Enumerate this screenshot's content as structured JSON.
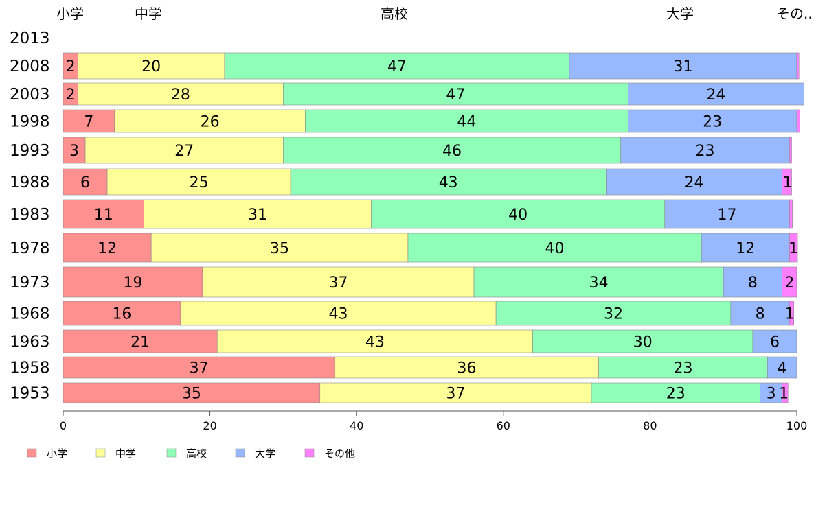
{
  "chart_data": {
    "type": "bar",
    "orientation": "horizontal",
    "stacked": true,
    "title": "",
    "xlabel": "",
    "ylabel": "",
    "xlim": [
      0,
      100
    ],
    "xticks": [
      0,
      20,
      40,
      60,
      80,
      100
    ],
    "grid": false,
    "legend_position": "bottom-left",
    "column_headers": [
      "小学",
      "中学",
      "高校",
      "大学",
      "その.."
    ],
    "categories": [
      "2013",
      "2008",
      "2003",
      "1998",
      "1993",
      "1988",
      "1983",
      "1978",
      "1973",
      "1968",
      "1963",
      "1958",
      "1953"
    ],
    "series": [
      {
        "name": "小学",
        "color": "#ff9090",
        "values": [
          null,
          2,
          2,
          7,
          3,
          6,
          11,
          12,
          19,
          16,
          21,
          37,
          35
        ],
        "labels": [
          "",
          "2",
          "2",
          "7",
          "3",
          "6",
          "11",
          "12",
          "19",
          "16",
          "21",
          "37",
          "35"
        ]
      },
      {
        "name": "中学",
        "color": "#ffff99",
        "values": [
          null,
          20,
          28,
          26,
          27,
          25,
          31,
          35,
          37,
          43,
          43,
          36,
          37
        ],
        "labels": [
          "",
          "20",
          "28",
          "26",
          "27",
          "25",
          "31",
          "35",
          "37",
          "43",
          "43",
          "36",
          "37"
        ]
      },
      {
        "name": "高校",
        "color": "#90ffb8",
        "values": [
          null,
          47,
          47,
          44,
          46,
          43,
          40,
          40,
          34,
          32,
          30,
          23,
          23
        ],
        "labels": [
          "",
          "47",
          "47",
          "44",
          "46",
          "43",
          "40",
          "40",
          "34",
          "32",
          "30",
          "23",
          "23"
        ]
      },
      {
        "name": "大学",
        "color": "#98b8ff",
        "values": [
          null,
          31,
          24,
          23,
          23,
          24,
          17,
          12,
          8,
          8,
          6,
          4,
          3
        ],
        "labels": [
          "",
          "31",
          "24",
          "23",
          "23",
          "24",
          "17",
          "12",
          "8",
          "8",
          "6",
          "4",
          "3"
        ]
      },
      {
        "name": "その他",
        "color": "#ff80ff",
        "values": [
          null,
          0.3,
          0,
          0.4,
          0.3,
          1.3,
          0.4,
          1.1,
          2,
          0.6,
          0,
          0,
          0.8
        ],
        "labels": [
          "",
          "",
          "",
          "",
          "",
          "1",
          "",
          "1",
          "2",
          "1",
          "",
          "",
          "1"
        ]
      }
    ]
  }
}
